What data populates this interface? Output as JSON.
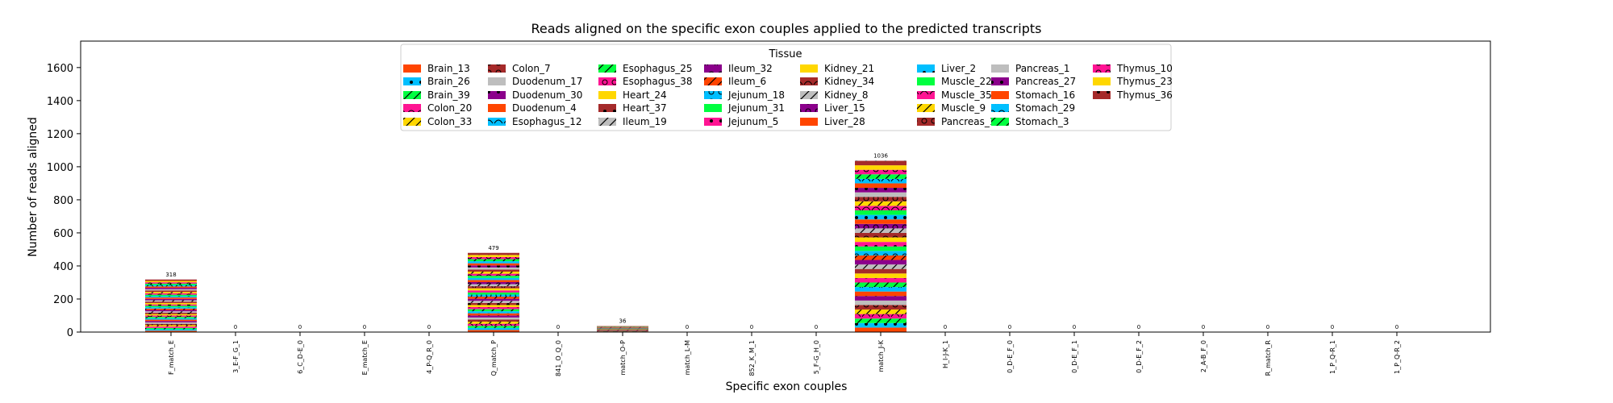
{
  "chart_data": {
    "type": "bar",
    "stacked": true,
    "title": "Reads aligned on the specific exon couples applied to the predicted transcripts",
    "xlabel": "Specific exon couples",
    "ylabel": "Number of reads aligned",
    "ylim": [
      0,
      1760
    ],
    "yticks": [
      0,
      200,
      400,
      600,
      800,
      1000,
      1200,
      1400,
      1600
    ],
    "grid": false,
    "legend": {
      "title": "Tissue",
      "placement": "upper-center",
      "columns": 8
    },
    "categories": [
      "F_match_E",
      "3_E-F_G_1",
      "6_C_D-E_0",
      "E_match_E",
      "4_P-Q_R_0",
      "Q_match_P",
      "841_O_Q_0",
      "match_O-P",
      "match_L-M",
      "852_K_M_1",
      "5_F-G_H_0",
      "match_J-K",
      "H_I-J-K_1",
      "0_D-E_F_0",
      "0_D-E_F_1",
      "0_D-E_F_2",
      "2_A-B_F_0",
      "R_match_R",
      "1_P_Q-R_1",
      "1_P_Q-R_2"
    ],
    "totals": [
      318,
      0,
      0,
      0,
      0,
      479,
      0,
      36,
      0,
      0,
      0,
      1036,
      0,
      0,
      0,
      0,
      0,
      0,
      0,
      0
    ],
    "series": [
      {
        "name": "Brain_13",
        "color": "#ff4500",
        "hatch": "none"
      },
      {
        "name": "Brain_26",
        "color": "#00bfff",
        "hatch": "dots"
      },
      {
        "name": "Brain_39",
        "color": "#00ff40",
        "hatch": "slash"
      },
      {
        "name": "Colon_20",
        "color": "#ff1493",
        "hatch": "arcs"
      },
      {
        "name": "Colon_33",
        "color": "#ffd700",
        "hatch": "slash"
      },
      {
        "name": "Colon_7",
        "color": "#a52a2a",
        "hatch": "rings"
      },
      {
        "name": "Duodenum_17",
        "color": "#bebebe",
        "hatch": "none"
      },
      {
        "name": "Duodenum_30",
        "color": "#8b008b",
        "hatch": "dots"
      },
      {
        "name": "Duodenum_4",
        "color": "#ff4500",
        "hatch": "none"
      },
      {
        "name": "Esophagus_12",
        "color": "#00bfff",
        "hatch": "arcs"
      },
      {
        "name": "Esophagus_25",
        "color": "#00ff40",
        "hatch": "slash"
      },
      {
        "name": "Esophagus_38",
        "color": "#ff1493",
        "hatch": "rings"
      },
      {
        "name": "Heart_24",
        "color": "#ffd700",
        "hatch": "none"
      },
      {
        "name": "Heart_37",
        "color": "#a52a2a",
        "hatch": "dots"
      },
      {
        "name": "Ileum_19",
        "color": "#bebebe",
        "hatch": "slash"
      },
      {
        "name": "Ileum_32",
        "color": "#8b008b",
        "hatch": "arcs"
      },
      {
        "name": "Ileum_6",
        "color": "#ff4500",
        "hatch": "slash"
      },
      {
        "name": "Jejunum_18",
        "color": "#00bfff",
        "hatch": "rings"
      },
      {
        "name": "Jejunum_31",
        "color": "#00ff40",
        "hatch": "none"
      },
      {
        "name": "Jejunum_5",
        "color": "#ff1493",
        "hatch": "dots"
      },
      {
        "name": "Kidney_21",
        "color": "#ffd700",
        "hatch": "none"
      },
      {
        "name": "Kidney_34",
        "color": "#a52a2a",
        "hatch": "arcs"
      },
      {
        "name": "Kidney_8",
        "color": "#bebebe",
        "hatch": "slash"
      },
      {
        "name": "Liver_15",
        "color": "#8b008b",
        "hatch": "rings"
      },
      {
        "name": "Liver_28",
        "color": "#ff4500",
        "hatch": "none"
      },
      {
        "name": "Liver_2",
        "color": "#00bfff",
        "hatch": "dots"
      },
      {
        "name": "Muscle_22",
        "color": "#00ff40",
        "hatch": "none"
      },
      {
        "name": "Muscle_35",
        "color": "#ff1493",
        "hatch": "arcs"
      },
      {
        "name": "Muscle_9",
        "color": "#ffd700",
        "hatch": "slash"
      },
      {
        "name": "Pancreas_14",
        "color": "#a52a2a",
        "hatch": "rings"
      },
      {
        "name": "Pancreas_1",
        "color": "#bebebe",
        "hatch": "none"
      },
      {
        "name": "Pancreas_27",
        "color": "#8b008b",
        "hatch": "dots"
      },
      {
        "name": "Stomach_16",
        "color": "#ff4500",
        "hatch": "none"
      },
      {
        "name": "Stomach_29",
        "color": "#00bfff",
        "hatch": "arcs"
      },
      {
        "name": "Stomach_3",
        "color": "#00ff40",
        "hatch": "slash"
      },
      {
        "name": "Thymus_10",
        "color": "#ff1493",
        "hatch": "rings"
      },
      {
        "name": "Thymus_23",
        "color": "#ffd700",
        "hatch": "none"
      },
      {
        "name": "Thymus_36",
        "color": "#a52a2a",
        "hatch": "dots"
      }
    ]
  }
}
